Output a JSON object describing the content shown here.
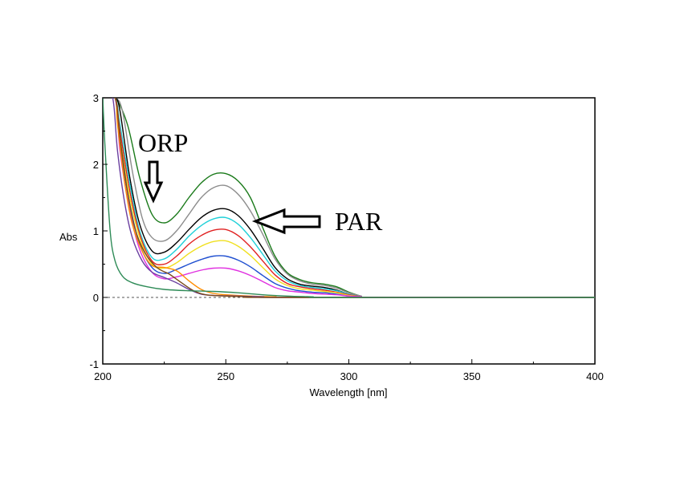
{
  "chart_data": {
    "type": "line",
    "xlabel": "Wavelength [nm]",
    "ylabel": "Abs",
    "xlim": [
      200,
      400
    ],
    "ylim": [
      -1,
      3
    ],
    "x_ticks": [
      200,
      250,
      300,
      350,
      400
    ],
    "y_ticks": [
      -1,
      0,
      1,
      2,
      3
    ],
    "x_tick_labels": [
      "200",
      "250",
      "300",
      "350",
      "400"
    ],
    "y_tick_labels": [
      "-1",
      "0",
      "1",
      "2",
      "3"
    ],
    "grid": false,
    "zero_line": "dashed",
    "series": [
      {
        "color": "#1a7a1a",
        "values": [
          [
            200,
            3
          ],
          [
            205,
            3
          ],
          [
            210,
            2.6
          ],
          [
            215,
            1.8
          ],
          [
            220,
            1.25
          ],
          [
            225,
            1.12
          ],
          [
            230,
            1.25
          ],
          [
            235,
            1.5
          ],
          [
            240,
            1.72
          ],
          [
            245,
            1.85
          ],
          [
            250,
            1.86
          ],
          [
            255,
            1.75
          ],
          [
            260,
            1.5
          ],
          [
            265,
            1.05
          ],
          [
            270,
            0.62
          ],
          [
            275,
            0.37
          ],
          [
            280,
            0.27
          ],
          [
            285,
            0.22
          ],
          [
            290,
            0.2
          ],
          [
            295,
            0.16
          ],
          [
            300,
            0.08
          ],
          [
            305,
            0.02
          ],
          [
            310,
            0
          ],
          [
            400,
            0
          ]
        ]
      },
      {
        "color": "#8c8c8c",
        "values": [
          [
            200,
            3
          ],
          [
            205,
            3
          ],
          [
            208,
            2.8
          ],
          [
            212,
            1.9
          ],
          [
            216,
            1.2
          ],
          [
            220,
            0.9
          ],
          [
            225,
            0.85
          ],
          [
            230,
            1.0
          ],
          [
            235,
            1.25
          ],
          [
            240,
            1.5
          ],
          [
            245,
            1.65
          ],
          [
            250,
            1.68
          ],
          [
            255,
            1.55
          ],
          [
            260,
            1.3
          ],
          [
            265,
            0.95
          ],
          [
            270,
            0.58
          ],
          [
            275,
            0.35
          ],
          [
            280,
            0.25
          ],
          [
            285,
            0.2
          ],
          [
            290,
            0.18
          ],
          [
            295,
            0.14
          ],
          [
            300,
            0.07
          ],
          [
            305,
            0.02
          ],
          [
            310,
            0
          ],
          [
            400,
            0
          ]
        ]
      },
      {
        "color": "#000000",
        "values": [
          [
            200,
            3
          ],
          [
            205,
            3
          ],
          [
            207,
            2.8
          ],
          [
            211,
            1.8
          ],
          [
            215,
            1.1
          ],
          [
            220,
            0.7
          ],
          [
            225,
            0.68
          ],
          [
            230,
            0.82
          ],
          [
            235,
            1.02
          ],
          [
            240,
            1.2
          ],
          [
            245,
            1.31
          ],
          [
            250,
            1.33
          ],
          [
            255,
            1.23
          ],
          [
            260,
            1.02
          ],
          [
            265,
            0.74
          ],
          [
            270,
            0.45
          ],
          [
            275,
            0.28
          ],
          [
            280,
            0.2
          ],
          [
            285,
            0.17
          ],
          [
            290,
            0.15
          ],
          [
            295,
            0.11
          ],
          [
            300,
            0.05
          ],
          [
            305,
            0.01
          ],
          [
            310,
            0
          ],
          [
            400,
            0
          ]
        ]
      },
      {
        "color": "#1fd0d8",
        "values": [
          [
            200,
            3
          ],
          [
            205,
            3
          ],
          [
            207,
            2.6
          ],
          [
            211,
            1.7
          ],
          [
            215,
            1.0
          ],
          [
            220,
            0.6
          ],
          [
            225,
            0.58
          ],
          [
            230,
            0.72
          ],
          [
            235,
            0.92
          ],
          [
            240,
            1.08
          ],
          [
            245,
            1.18
          ],
          [
            250,
            1.2
          ],
          [
            255,
            1.1
          ],
          [
            260,
            0.9
          ],
          [
            265,
            0.65
          ],
          [
            270,
            0.4
          ],
          [
            275,
            0.25
          ],
          [
            280,
            0.18
          ],
          [
            285,
            0.15
          ],
          [
            290,
            0.13
          ],
          [
            295,
            0.1
          ],
          [
            300,
            0.05
          ],
          [
            305,
            0.01
          ],
          [
            310,
            0
          ],
          [
            400,
            0
          ]
        ]
      },
      {
        "color": "#e02020",
        "values": [
          [
            200,
            3
          ],
          [
            205,
            3
          ],
          [
            207,
            2.5
          ],
          [
            211,
            1.6
          ],
          [
            215,
            0.95
          ],
          [
            220,
            0.55
          ],
          [
            225,
            0.5
          ],
          [
            230,
            0.62
          ],
          [
            235,
            0.8
          ],
          [
            240,
            0.93
          ],
          [
            245,
            1.01
          ],
          [
            250,
            1.02
          ],
          [
            255,
            0.93
          ],
          [
            260,
            0.76
          ],
          [
            265,
            0.55
          ],
          [
            270,
            0.34
          ],
          [
            275,
            0.21
          ],
          [
            280,
            0.16
          ],
          [
            285,
            0.13
          ],
          [
            290,
            0.11
          ],
          [
            295,
            0.08
          ],
          [
            300,
            0.04
          ],
          [
            305,
            0.01
          ],
          [
            310,
            0
          ],
          [
            400,
            0
          ]
        ]
      },
      {
        "color": "#f0e020",
        "values": [
          [
            200,
            3
          ],
          [
            205,
            3
          ],
          [
            207,
            2.4
          ],
          [
            211,
            1.5
          ],
          [
            215,
            0.9
          ],
          [
            220,
            0.5
          ],
          [
            225,
            0.44
          ],
          [
            230,
            0.52
          ],
          [
            235,
            0.66
          ],
          [
            240,
            0.77
          ],
          [
            245,
            0.84
          ],
          [
            250,
            0.85
          ],
          [
            255,
            0.77
          ],
          [
            260,
            0.63
          ],
          [
            265,
            0.45
          ],
          [
            270,
            0.28
          ],
          [
            275,
            0.18
          ],
          [
            280,
            0.13
          ],
          [
            285,
            0.11
          ],
          [
            290,
            0.09
          ],
          [
            295,
            0.07
          ],
          [
            300,
            0.03
          ],
          [
            305,
            0.01
          ],
          [
            310,
            0
          ],
          [
            400,
            0
          ]
        ]
      },
      {
        "color": "#1f4fd0",
        "values": [
          [
            200,
            3
          ],
          [
            205,
            3
          ],
          [
            207,
            2.3
          ],
          [
            211,
            1.4
          ],
          [
            215,
            0.8
          ],
          [
            220,
            0.45
          ],
          [
            225,
            0.36
          ],
          [
            230,
            0.42
          ],
          [
            235,
            0.5
          ],
          [
            240,
            0.57
          ],
          [
            245,
            0.62
          ],
          [
            250,
            0.62
          ],
          [
            255,
            0.56
          ],
          [
            260,
            0.46
          ],
          [
            265,
            0.33
          ],
          [
            270,
            0.21
          ],
          [
            275,
            0.14
          ],
          [
            280,
            0.1
          ],
          [
            285,
            0.08
          ],
          [
            290,
            0.07
          ],
          [
            295,
            0.05
          ],
          [
            300,
            0.02
          ],
          [
            305,
            0.01
          ],
          [
            310,
            0
          ],
          [
            400,
            0
          ]
        ]
      },
      {
        "color": "#e030e0",
        "values": [
          [
            200,
            3
          ],
          [
            205,
            3
          ],
          [
            207,
            2.2
          ],
          [
            211,
            1.3
          ],
          [
            215,
            0.72
          ],
          [
            220,
            0.38
          ],
          [
            225,
            0.28
          ],
          [
            230,
            0.31
          ],
          [
            235,
            0.36
          ],
          [
            240,
            0.41
          ],
          [
            245,
            0.44
          ],
          [
            250,
            0.44
          ],
          [
            255,
            0.4
          ],
          [
            260,
            0.33
          ],
          [
            265,
            0.24
          ],
          [
            270,
            0.15
          ],
          [
            275,
            0.1
          ],
          [
            280,
            0.08
          ],
          [
            285,
            0.06
          ],
          [
            290,
            0.05
          ],
          [
            295,
            0.04
          ],
          [
            300,
            0.02
          ],
          [
            305,
            0.01
          ],
          [
            310,
            0
          ],
          [
            400,
            0
          ]
        ]
      },
      {
        "color": "#ff8c00",
        "values": [
          [
            200,
            3
          ],
          [
            205,
            3
          ],
          [
            206,
            2.6
          ],
          [
            209,
            1.7
          ],
          [
            212,
            1.1
          ],
          [
            216,
            0.7
          ],
          [
            220,
            0.48
          ],
          [
            225,
            0.45
          ],
          [
            230,
            0.4
          ],
          [
            235,
            0.25
          ],
          [
            240,
            0.12
          ],
          [
            245,
            0.06
          ],
          [
            250,
            0.04
          ],
          [
            260,
            0.02
          ],
          [
            270,
            0.01
          ],
          [
            280,
            0
          ],
          [
            400,
            0
          ]
        ]
      },
      {
        "color": "#6a3fa0",
        "values": [
          [
            200,
            3
          ],
          [
            204,
            3
          ],
          [
            206,
            2.2
          ],
          [
            209,
            1.4
          ],
          [
            212,
            0.9
          ],
          [
            216,
            0.55
          ],
          [
            220,
            0.38
          ],
          [
            225,
            0.3
          ],
          [
            230,
            0.22
          ],
          [
            235,
            0.12
          ],
          [
            240,
            0.05
          ],
          [
            245,
            0.03
          ],
          [
            255,
            0.02
          ],
          [
            265,
            0.01
          ],
          [
            275,
            0
          ],
          [
            400,
            0
          ]
        ]
      },
      {
        "color": "#7a4a1a",
        "values": [
          [
            200,
            3
          ],
          [
            205,
            3
          ],
          [
            207,
            2.4
          ],
          [
            210,
            1.6
          ],
          [
            213,
            1.05
          ],
          [
            217,
            0.68
          ],
          [
            222,
            0.45
          ],
          [
            227,
            0.35
          ],
          [
            232,
            0.22
          ],
          [
            237,
            0.1
          ],
          [
            242,
            0.04
          ],
          [
            250,
            0.02
          ],
          [
            260,
            0.01
          ],
          [
            270,
            0
          ],
          [
            400,
            0
          ]
        ]
      },
      {
        "color": "#2e8b57",
        "values": [
          [
            200,
            3
          ],
          [
            201,
            2.2
          ],
          [
            203,
            1.0
          ],
          [
            205,
            0.55
          ],
          [
            208,
            0.32
          ],
          [
            212,
            0.22
          ],
          [
            218,
            0.16
          ],
          [
            225,
            0.12
          ],
          [
            235,
            0.1
          ],
          [
            245,
            0.09
          ],
          [
            255,
            0.07
          ],
          [
            265,
            0.04
          ],
          [
            275,
            0.02
          ],
          [
            285,
            0.01
          ],
          [
            295,
            0
          ],
          [
            400,
            0
          ]
        ]
      }
    ],
    "annotations": [
      {
        "text": "ORP",
        "arrow": "down"
      },
      {
        "text": "PAR",
        "arrow": "left"
      }
    ]
  }
}
